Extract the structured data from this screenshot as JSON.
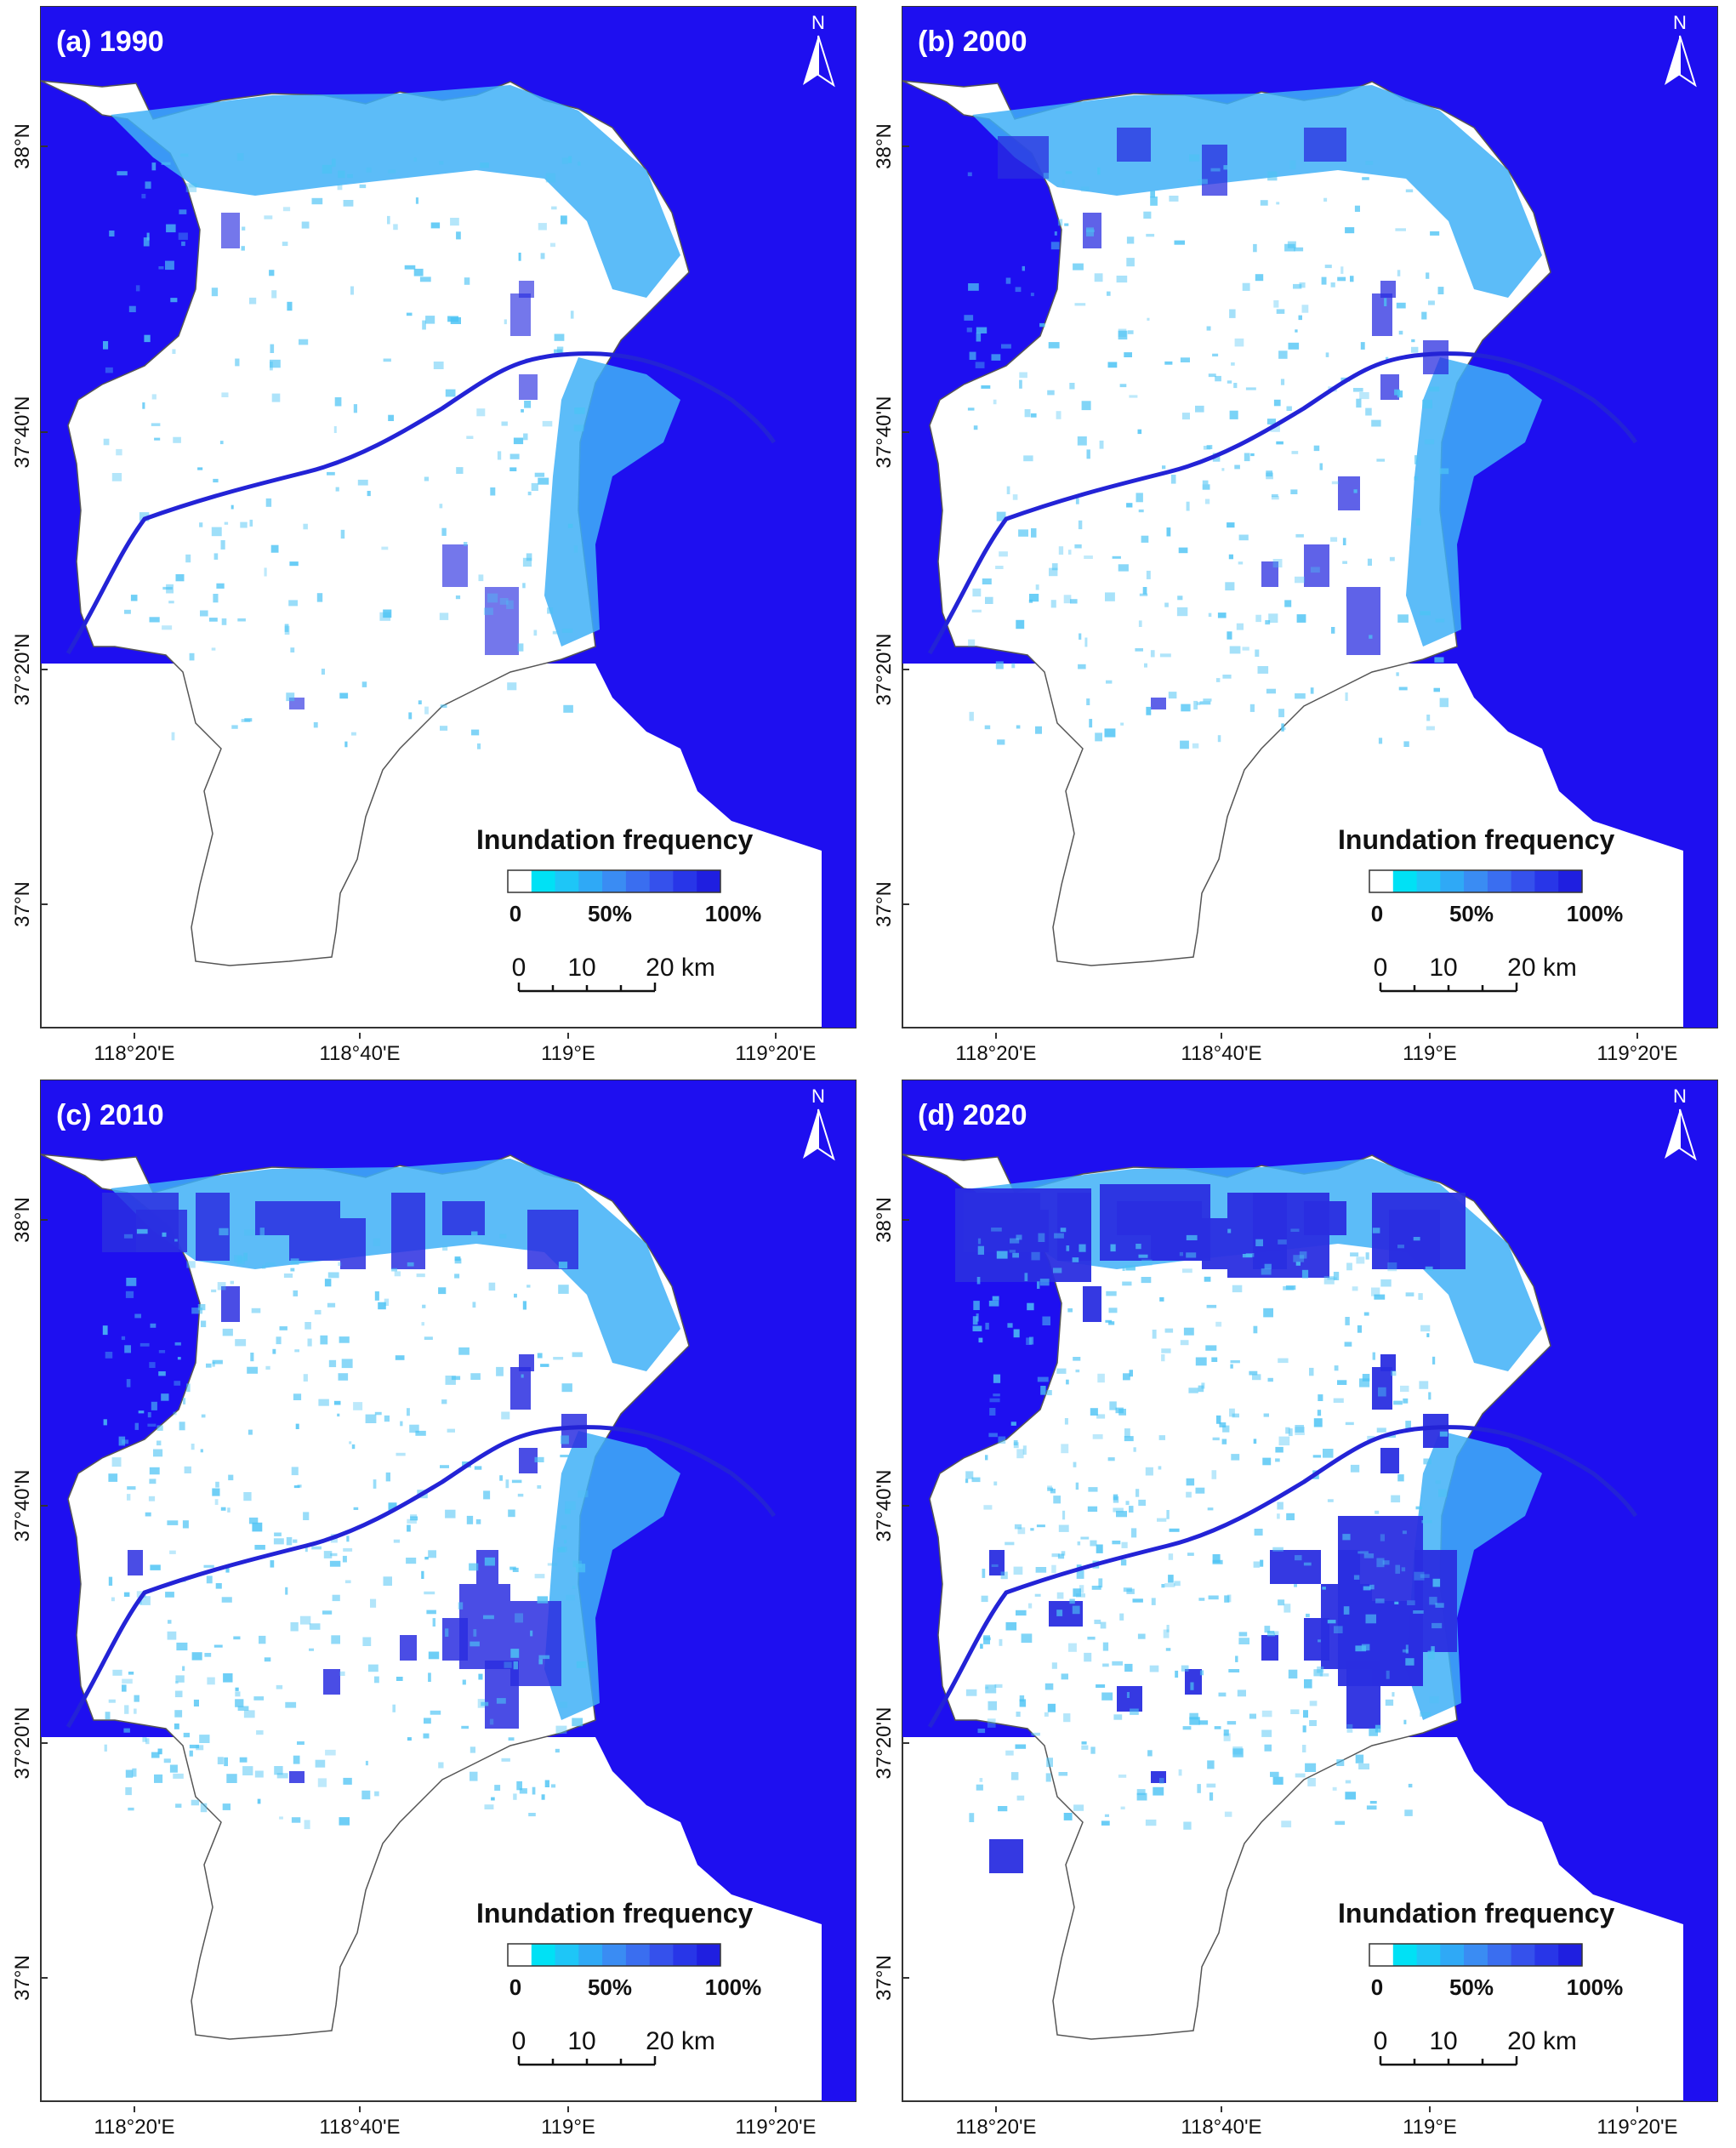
{
  "panels": [
    {
      "id": "a",
      "title": "(a)  1990",
      "intensity": 1,
      "north": "N"
    },
    {
      "id": "b",
      "title": "(b)  2000",
      "intensity": 2,
      "north": "N"
    },
    {
      "id": "c",
      "title": "(c)  2010",
      "intensity": 3,
      "north": "N"
    },
    {
      "id": "d",
      "title": "(d)  2020",
      "intensity": 4,
      "north": "N"
    }
  ],
  "legend": {
    "title": "Inundation frequency",
    "ticks": [
      "0",
      "50%",
      "100%"
    ],
    "colors": [
      "#ffffff",
      "#00e1f5",
      "#1ec6f7",
      "#2fa9f6",
      "#3a8cf3",
      "#3a6ef0",
      "#3551ec",
      "#2836e8",
      "#1f1fe0"
    ]
  },
  "scale_bar": {
    "labels": [
      "0",
      "10",
      "20 km"
    ]
  },
  "lon_labels": [
    "118°20'E",
    "118°40'E",
    "119°E",
    "119°20'E"
  ],
  "lat_labels": [
    "38°N",
    "37°40'N",
    "37°20'N",
    "37°N"
  ],
  "colors": {
    "sea": "#1e0ff0",
    "land": "#ffffff",
    "frame": "#333333"
  }
}
